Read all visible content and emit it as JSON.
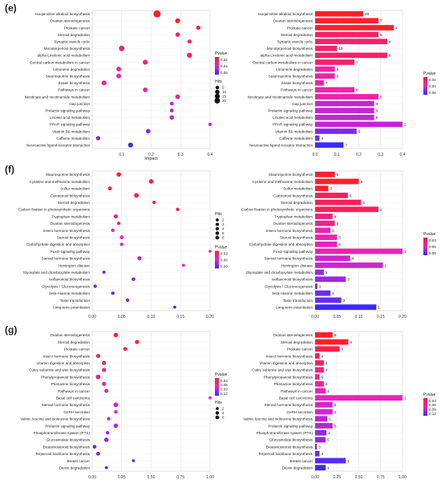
{
  "panels": [
    {
      "letter": "(e)"
    },
    {
      "letter": "(f)"
    },
    {
      "letter": "(g)"
    }
  ],
  "chart_data": [
    {
      "type": "scatter",
      "panel": "(e)",
      "xlabel": "Impact",
      "xlim": [
        0,
        0.4
      ],
      "xticks": [
        "0.1",
        "0.2",
        "0.3",
        "0.4"
      ],
      "categories": [
        "Isoquinoline alkaloid biosynthesis",
        "Ovarian steroidogenesis",
        "Prostate cancer",
        "Steroid degradation",
        "Synaptic vesicle cycle",
        "Monoterpenoid biosynthesis",
        "alpha-Linolenic acid metabolism",
        "Central carbon metabolism in cancer",
        "Limonene degradation",
        "Staurosporine biosynthesis",
        "Zeatin biosynthesis",
        "Pathways in cancer",
        "Nicotinate and nicotinamide metabolism",
        "Gap junction",
        "Prolactin signaling pathway",
        "Linoleic acid metabolism",
        "PPAR signaling pathway",
        "Vitamin B6 metabolism",
        "Caffeine metabolism",
        "Neuroactive ligand-receptor interaction"
      ],
      "x": [
        0.22,
        0.29,
        0.36,
        0.29,
        0.33,
        0.1,
        0.33,
        0.18,
        0.09,
        0.09,
        0.04,
        0.18,
        0.29,
        0.27,
        0.27,
        0.27,
        0.4,
        0.19,
        0.02,
        0.13
      ],
      "hits": [
        20,
        7,
        4,
        5,
        4,
        10,
        8,
        7,
        6,
        6,
        7,
        6,
        6,
        3,
        3,
        5,
        2,
        5,
        4,
        7
      ],
      "pvalue": [
        0.01,
        0.01,
        0.01,
        0.02,
        0.02,
        0.02,
        0.02,
        0.02,
        0.03,
        0.03,
        0.03,
        0.03,
        0.03,
        0.04,
        0.04,
        0.04,
        0.04,
        0.05,
        0.05,
        0.06
      ],
      "legend_pvalue_title": "Pvalue",
      "legend_pvalue_ticks": [
        "0.02",
        "0.04",
        "0.06"
      ],
      "legend_hits_title": "Hits",
      "legend_hits_ticks": [
        "5",
        "10",
        "15",
        "20"
      ]
    },
    {
      "type": "bar",
      "panel": "(e)",
      "xlim": [
        0,
        0.4
      ],
      "xticks": [
        "0.0",
        "0.1",
        "0.2",
        "0.3",
        "0.4"
      ],
      "categories": [
        "Isoquinoline alkaloid biosynthesis",
        "Ovarian steroidogenesis",
        "Prostate cancer",
        "Steroid degradation",
        "Synaptic vesicle cycle",
        "Monoterpenoid biosynthesis",
        "alpha-Linolenic acid metabolism",
        "Central carbon metabolism in cancer",
        "Limonene degradation",
        "Staurosporine biosynthesis",
        "Zeatin biosynthesis",
        "Pathways in cancer",
        "Nicotinate and nicotinamide metabolism",
        "Gap junction",
        "Prolactin signaling pathway",
        "Linoleic acid metabolism",
        "PPAR signaling pathway",
        "Vitamin B6 metabolism",
        "Caffeine metabolism",
        "Neuroactive ligand-receptor interaction"
      ],
      "values": [
        0.22,
        0.29,
        0.36,
        0.29,
        0.33,
        0.1,
        0.33,
        0.18,
        0.09,
        0.09,
        0.04,
        0.18,
        0.29,
        0.27,
        0.27,
        0.27,
        0.4,
        0.19,
        0.02,
        0.13
      ],
      "labels": [
        "20",
        "7",
        "4",
        "5",
        "4",
        "10",
        "8",
        "7",
        "6",
        "6",
        "7",
        "6",
        "6",
        "3",
        "3",
        "5",
        "2",
        "5",
        "4",
        "7"
      ],
      "pvalue": [
        0.01,
        0.01,
        0.01,
        0.02,
        0.02,
        0.02,
        0.02,
        0.02,
        0.03,
        0.03,
        0.03,
        0.03,
        0.03,
        0.04,
        0.04,
        0.04,
        0.04,
        0.05,
        0.05,
        0.06
      ],
      "legend_pvalue_title": "Pvalue",
      "legend_pvalue_ticks": [
        "0.02",
        "0.04",
        "0.06"
      ]
    },
    {
      "type": "scatter",
      "panel": "(f)",
      "xlim": [
        0,
        0.2
      ],
      "xticks": [
        "0.00",
        "0.05",
        "0.10",
        "0.15",
        "0.20"
      ],
      "categories": [
        "Staurosporine biosynthesis",
        "Cysteine and methionine metabolism",
        "Sulfur metabolism",
        "Carotenoid biosynthesis",
        "Steroid degradation",
        "Carbon fixation in photosynthetic organisms",
        "Tryptophan metabolism",
        "Ovarian steroidogenesis",
        "Insect hormone biosynthesis",
        "Steroid biosynthesis",
        "Carbohydrate digestion and absorption",
        "FoxO signaling pathway",
        "Steroid hormone biosynthesis",
        "Huntington disease",
        "Glyoxylate and dicarboxylate metabolism",
        "Isoflavonoid biosynthesis",
        "Glycolysis / Gluconeogenesis",
        "beta-Alanine metabolism",
        "Taste transduction",
        "Long-term potentiation"
      ],
      "x": [
        0.045,
        0.1,
        0.03,
        0.075,
        0.105,
        0.145,
        0.04,
        0.045,
        0.035,
        0.05,
        0.05,
        0.2,
        0.08,
        0.155,
        0.02,
        0.07,
        0.005,
        0.035,
        0.06,
        0.14
      ],
      "hits": [
        5,
        5,
        3,
        6,
        2,
        2,
        4,
        2,
        2,
        3,
        2,
        1,
        4,
        1,
        2,
        3,
        2,
        2,
        2,
        1
      ],
      "pvalue": [
        0.01,
        0.01,
        0.01,
        0.02,
        0.02,
        0.02,
        0.03,
        0.03,
        0.04,
        0.04,
        0.04,
        0.04,
        0.05,
        0.05,
        0.06,
        0.06,
        0.07,
        0.07,
        0.07,
        0.08
      ],
      "legend_hits_title": "Hits",
      "legend_hits_ticks": [
        "2",
        "3",
        "4",
        "5",
        "6"
      ],
      "legend_pvalue_title": "Pvalue",
      "legend_pvalue_ticks": [
        "0.03",
        "0.06",
        "0.09"
      ]
    },
    {
      "type": "bar",
      "panel": "(f)",
      "xlim": [
        0,
        0.2
      ],
      "xticks": [
        "0.00",
        "0.05",
        "0.10",
        "0.15",
        "0.20"
      ],
      "categories": [
        "Staurosporine biosynthesis",
        "Cysteine and methionine metabolism",
        "Sulfur metabolism",
        "Carotenoid biosynthesis",
        "Steroid degradation",
        "Carbon fixation in photosynthetic organisms",
        "Tryptophan metabolism",
        "Ovarian steroidogenesis",
        "Insect hormone biosynthesis",
        "Steroid biosynthesis",
        "Carbohydrate digestion and absorption",
        "FoxO signaling pathway",
        "Steroid hormone biosynthesis",
        "Huntington disease",
        "Glyoxylate and dicarboxylate metabolism",
        "Isoflavonoid biosynthesis",
        "Glycolysis / Gluconeogenesis",
        "beta-Alanine metabolism",
        "Taste transduction",
        "Long-term potentiation"
      ],
      "values": [
        0.045,
        0.1,
        0.03,
        0.075,
        0.105,
        0.145,
        0.04,
        0.045,
        0.035,
        0.05,
        0.05,
        0.2,
        0.08,
        0.155,
        0.02,
        0.07,
        0.005,
        0.035,
        0.06,
        0.14
      ],
      "labels": [
        "5",
        "5",
        "3",
        "6",
        "2",
        "2",
        "4",
        "2",
        "2",
        "3",
        "2",
        "1",
        "4",
        "1",
        "2",
        "3",
        "2",
        "2",
        "2",
        "1"
      ],
      "pvalue": [
        0.01,
        0.01,
        0.01,
        0.02,
        0.02,
        0.02,
        0.03,
        0.03,
        0.04,
        0.04,
        0.04,
        0.04,
        0.05,
        0.05,
        0.06,
        0.06,
        0.07,
        0.07,
        0.07,
        0.08
      ],
      "legend_pvalue_title": "Pvalue",
      "legend_pvalue_ticks": [
        "0.03",
        "0.06",
        "0.09"
      ]
    },
    {
      "type": "scatter",
      "panel": "(g)",
      "xlim": [
        0,
        1
      ],
      "xticks": [
        "0.00",
        "0.25",
        "0.50",
        "0.75",
        "1.00"
      ],
      "categories": [
        "Ovarian steroidogenesis",
        "Steroid degradation",
        "Prostate cancer",
        "Insect hormone biosynthesis",
        "Vitamin digestion and absorption",
        "Cutin, suberine and wax biosynthesis",
        "Phenylpropanoid biosynthesis",
        "Phenazine biosynthesis",
        "Pathways in cancer",
        "Basal cell carcinoma",
        "Steroid hormone biosynthesis",
        "GnRH secretion",
        "Valine, leucine and isoleucine biosynthesis",
        "Prolactin signaling pathway",
        "Phosphotransferase system (PTS)",
        "Glucosinolate biosynthesis",
        "Brassinosteroid biosynthesis",
        "Terpenoid backbone biosynthesis",
        "Breast cancer",
        "Dioxin degradation"
      ],
      "x": [
        0.2,
        0.38,
        0.28,
        0.05,
        0.1,
        0.1,
        0.05,
        0.1,
        0.12,
        1.0,
        0.2,
        0.2,
        0.14,
        0.2,
        0.13,
        0.12,
        0.02,
        0.05,
        0.35,
        0.12
      ],
      "hits": [
        5,
        4,
        3,
        4,
        4,
        4,
        6,
        4,
        4,
        1,
        6,
        2,
        2,
        5,
        2,
        5,
        3,
        3,
        1,
        1
      ],
      "pvalue": [
        0.01,
        0.01,
        0.02,
        0.02,
        0.03,
        0.04,
        0.04,
        0.05,
        0.06,
        0.06,
        0.07,
        0.07,
        0.08,
        0.08,
        0.09,
        0.09,
        0.1,
        0.1,
        0.11,
        0.12
      ],
      "legend_pvalue_title": "Pvalue",
      "legend_pvalue_ticks": [
        "0.03",
        "0.06",
        "0.09",
        "0.12"
      ],
      "legend_hits_title": "Hits",
      "legend_hits_ticks": [
        "2",
        "4",
        "6"
      ]
    },
    {
      "type": "bar",
      "panel": "(g)",
      "xlim": [
        0,
        1
      ],
      "xticks": [
        "0.00",
        "0.25",
        "0.50",
        "0.75",
        "1.00"
      ],
      "categories": [
        "Ovarian steroidogenesis",
        "Steroid degradation",
        "Prostate cancer",
        "Insect hormone biosynthesis",
        "Vitamin digestion and absorption",
        "Cutin, suberine and wax biosynthesis",
        "Phenylpropanoid biosynthesis",
        "Phenazine biosynthesis",
        "Pathways in cancer",
        "Basal cell carcinoma",
        "Steroid hormone biosynthesis",
        "GnRH secretion",
        "Valine, leucine and isoleucine biosynthesis",
        "Prolactin signaling pathway",
        "Phosphotransferase system (PTS)",
        "Glucosinolate biosynthesis",
        "Brassinosteroid biosynthesis",
        "Terpenoid backbone biosynthesis",
        "Breast cancer",
        "Dioxin degradation"
      ],
      "values": [
        0.2,
        0.38,
        0.28,
        0.05,
        0.1,
        0.1,
        0.05,
        0.1,
        0.12,
        1.0,
        0.2,
        0.2,
        0.14,
        0.2,
        0.13,
        0.12,
        0.02,
        0.05,
        0.35,
        0.12
      ],
      "labels": [
        "5",
        "4",
        "3",
        "4",
        "4",
        "4",
        "6",
        "4",
        "4",
        "1",
        "6",
        "2",
        "2",
        "5",
        "2",
        "5",
        "3",
        "3",
        "1",
        "1"
      ],
      "pvalue": [
        0.01,
        0.01,
        0.02,
        0.02,
        0.03,
        0.04,
        0.04,
        0.05,
        0.06,
        0.06,
        0.07,
        0.07,
        0.08,
        0.08,
        0.09,
        0.09,
        0.1,
        0.1,
        0.11,
        0.12
      ],
      "legend_pvalue_title": "Pvalue",
      "legend_pvalue_ticks": [
        "0.03",
        "0.06",
        "0.09",
        "0.12"
      ]
    }
  ]
}
